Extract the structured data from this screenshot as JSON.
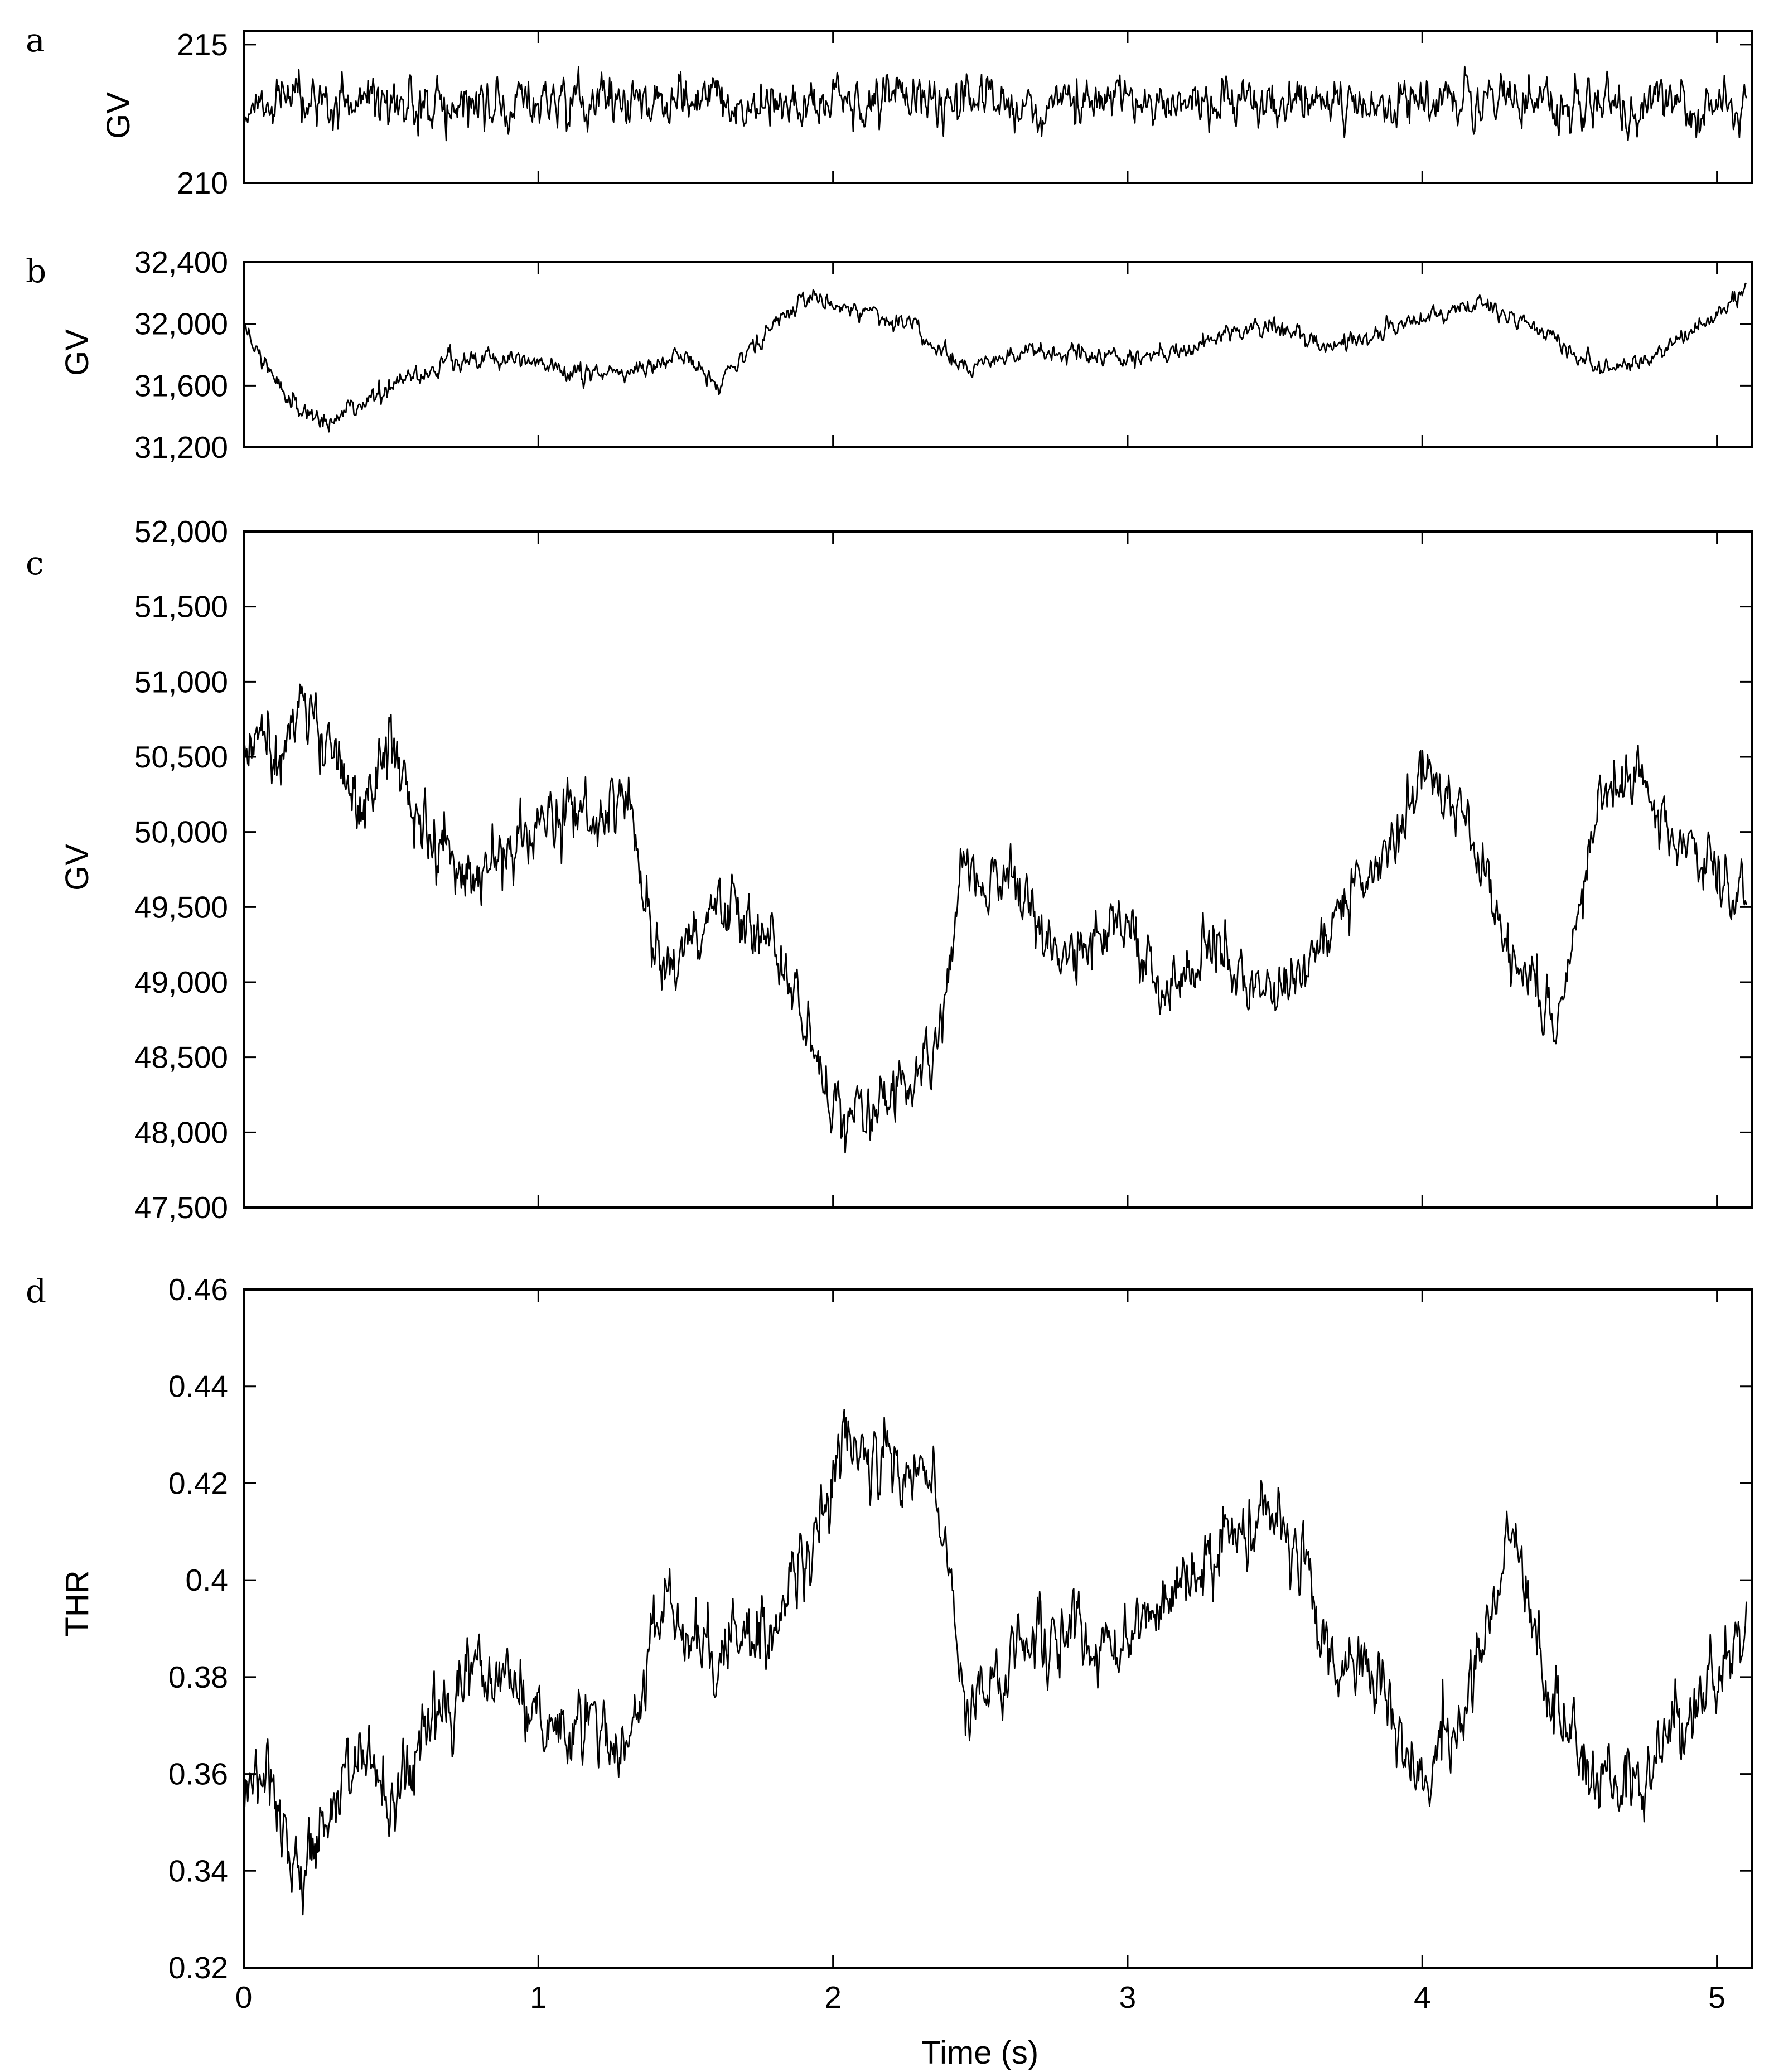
{
  "chart_data": [
    {
      "panel": "a",
      "type": "line",
      "ylabel": "GV",
      "xlim": [
        0,
        5.12
      ],
      "ylim": [
        210,
        215.5
      ],
      "yticks": [
        210,
        215
      ],
      "ytick_labels": [
        "210",
        "215"
      ],
      "xticks": [
        0,
        1,
        2,
        3,
        4,
        5
      ],
      "show_xtick_labels": false,
      "x_sampled": [
        0,
        0.25,
        0.5,
        0.75,
        1.0,
        1.25,
        1.5,
        1.75,
        2.0,
        2.25,
        2.5,
        2.75,
        3.0,
        3.25,
        3.5,
        3.75,
        4.0,
        4.25,
        4.5,
        4.75,
        5.0,
        5.1
      ],
      "values": [
        212.8,
        212.9,
        213.0,
        212.8,
        212.9,
        212.8,
        213.0,
        212.9,
        212.8,
        213.0,
        212.9,
        212.8,
        212.9,
        212.9,
        213.0,
        212.8,
        212.9,
        213.0,
        212.9,
        212.8,
        212.9,
        212.8
      ],
      "noise": 0.55
    },
    {
      "panel": "b",
      "type": "line",
      "ylabel": "GV",
      "xlim": [
        0,
        5.12
      ],
      "ylim": [
        31200,
        32400
      ],
      "yticks": [
        31200,
        31600,
        32000,
        32400
      ],
      "ytick_labels": [
        "31,200",
        "31,600",
        "32,000",
        "32,400"
      ],
      "xticks": [
        0,
        1,
        2,
        3,
        4,
        5
      ],
      "show_xtick_labels": false,
      "x_sampled": [
        0,
        0.05,
        0.15,
        0.3,
        0.5,
        0.7,
        0.9,
        1.1,
        1.3,
        1.5,
        1.6,
        1.75,
        1.9,
        2.1,
        2.3,
        2.45,
        2.7,
        3.0,
        3.2,
        3.45,
        3.7,
        3.9,
        4.2,
        4.4,
        4.6,
        4.75,
        5.0,
        5.1
      ],
      "values": [
        32000,
        31800,
        31500,
        31350,
        31600,
        31750,
        31780,
        31700,
        31680,
        31800,
        31600,
        31900,
        32150,
        32100,
        31950,
        31700,
        31850,
        31750,
        31850,
        32000,
        31850,
        31950,
        32150,
        31950,
        31700,
        31750,
        32050,
        32250
      ],
      "noise": 55
    },
    {
      "panel": "c",
      "type": "line",
      "ylabel": "GV",
      "xlim": [
        0,
        5.12
      ],
      "ylim": [
        47500,
        52000
      ],
      "yticks": [
        47500,
        48000,
        48500,
        49000,
        49500,
        50000,
        50500,
        51000,
        51500,
        52000
      ],
      "ytick_labels": [
        "47,500",
        "48,000",
        "48,500",
        "49,000",
        "49,500",
        "50,000",
        "50,500",
        "51,000",
        "51,500",
        "52,000"
      ],
      "xticks": [
        0,
        1,
        2,
        3,
        4,
        5
      ],
      "show_xtick_labels": false,
      "x_sampled": [
        0,
        0.1,
        0.2,
        0.3,
        0.4,
        0.5,
        0.6,
        0.8,
        1.0,
        1.2,
        1.3,
        1.4,
        1.6,
        1.8,
        1.95,
        2.05,
        2.2,
        2.35,
        2.45,
        2.6,
        2.8,
        2.95,
        3.1,
        3.3,
        3.5,
        3.7,
        3.85,
        4.0,
        4.15,
        4.3,
        4.45,
        4.6,
        4.75,
        4.85,
        5.0,
        5.1
      ],
      "values": [
        50600,
        50500,
        51000,
        50500,
        50200,
        50600,
        50000,
        49700,
        50100,
        50000,
        50300,
        49100,
        49500,
        49300,
        48400,
        48000,
        48300,
        48500,
        49800,
        49700,
        49100,
        49400,
        49000,
        49200,
        48900,
        49400,
        49800,
        50400,
        50100,
        49200,
        48700,
        50200,
        50400,
        49900,
        49800,
        49500
      ],
      "noise": 200
    },
    {
      "panel": "d",
      "type": "line",
      "ylabel": "THR",
      "xlabel": "Time (s)",
      "xlim": [
        0,
        5.12
      ],
      "ylim": [
        0.32,
        0.46
      ],
      "yticks": [
        0.32,
        0.34,
        0.36,
        0.38,
        0.4,
        0.42,
        0.44,
        0.46
      ],
      "ytick_labels": [
        "0.32",
        "0.34",
        "0.36",
        "0.38",
        "0.4",
        "0.42",
        "0.44",
        "0.46"
      ],
      "xticks": [
        0,
        1,
        2,
        3,
        4,
        5
      ],
      "xtick_labels": [
        "0",
        "1",
        "2",
        "3",
        "4",
        "5"
      ],
      "show_xtick_labels": true,
      "x_sampled": [
        0,
        0.1,
        0.2,
        0.3,
        0.4,
        0.5,
        0.6,
        0.8,
        1.0,
        1.2,
        1.3,
        1.4,
        1.6,
        1.8,
        1.95,
        2.05,
        2.2,
        2.35,
        2.45,
        2.6,
        2.8,
        2.95,
        3.1,
        3.3,
        3.5,
        3.7,
        3.85,
        4.0,
        4.15,
        4.3,
        4.45,
        4.6,
        4.75,
        4.85,
        5.0,
        5.1
      ],
      "values": [
        0.355,
        0.358,
        0.335,
        0.355,
        0.365,
        0.352,
        0.37,
        0.382,
        0.372,
        0.368,
        0.365,
        0.395,
        0.385,
        0.39,
        0.41,
        0.43,
        0.422,
        0.423,
        0.37,
        0.385,
        0.39,
        0.385,
        0.395,
        0.405,
        0.415,
        0.385,
        0.38,
        0.36,
        0.375,
        0.41,
        0.375,
        0.36,
        0.358,
        0.37,
        0.38,
        0.39
      ],
      "noise": 0.007
    }
  ]
}
